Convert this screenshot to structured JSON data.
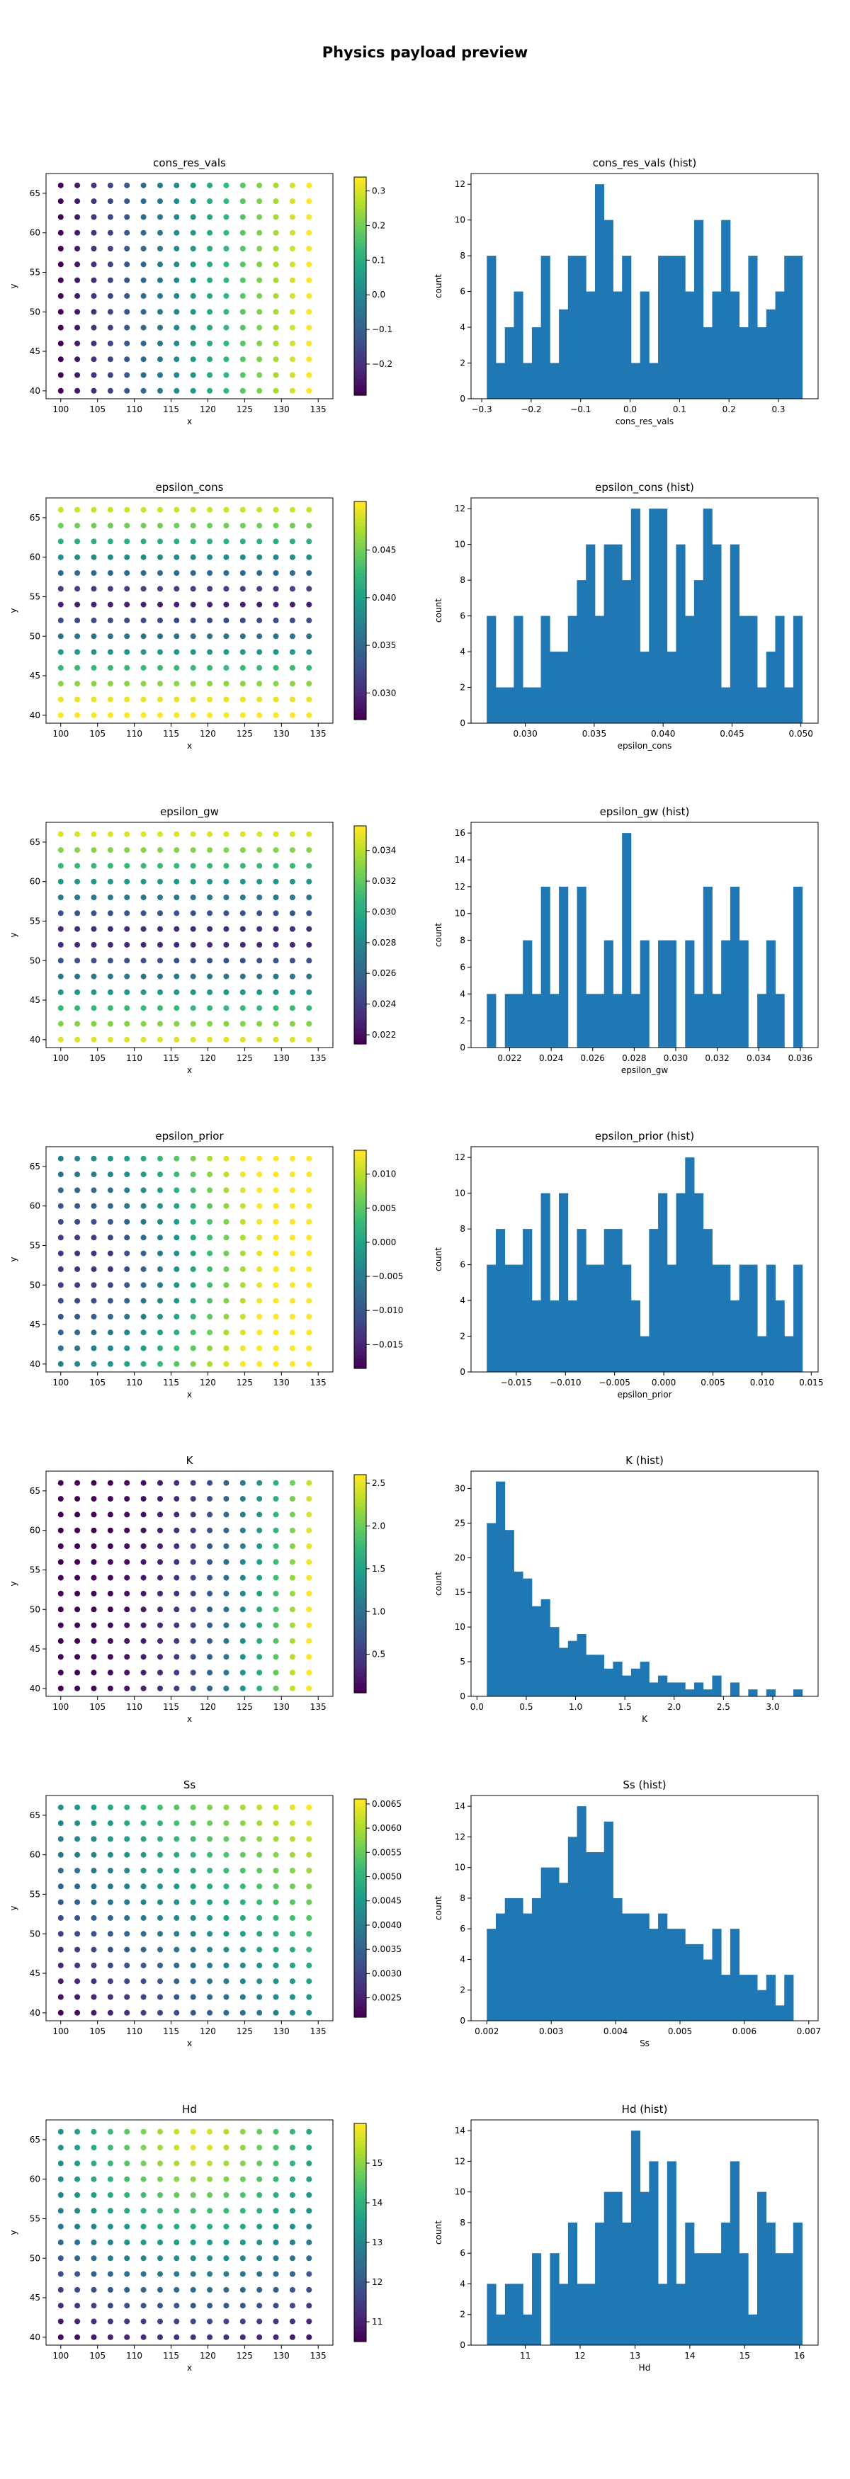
{
  "figure": {
    "title": "Physics payload preview"
  },
  "colormap": [
    "#440154",
    "#482878",
    "#3e4a89",
    "#31688e",
    "#26828e",
    "#1f9e89",
    "#35b779",
    "#6ece58",
    "#b5de2b",
    "#fde725"
  ],
  "hist_color": "#1f77b4",
  "chart_data": [
    {
      "type": "scatter",
      "title": "cons_res_vals",
      "xlabel": "x",
      "ylabel": "y",
      "xlim": [
        98,
        137
      ],
      "ylim": [
        39,
        67.5
      ],
      "xticks": [
        100,
        105,
        110,
        115,
        120,
        125,
        130,
        135
      ],
      "yticks": [
        40,
        45,
        50,
        55,
        60,
        65
      ],
      "grid": {
        "x_start": 100,
        "x_step": 2.25,
        "nx": 16,
        "y_start": 40,
        "y_step": 2,
        "ny": 14
      },
      "field": {
        "x_coef": 1,
        "y_coef": 0,
        "xy_coef": 0
      },
      "colorbar": {
        "min": -0.29,
        "max": 0.34,
        "ticks": [
          -0.2,
          -0.1,
          0.0,
          0.1,
          0.2,
          0.3
        ],
        "tick_labels": [
          "−0.2",
          "−0.1",
          "0.0",
          "0.1",
          "0.2",
          "0.3"
        ]
      }
    },
    {
      "type": "bar",
      "title": "cons_res_vals (hist)",
      "xlabel": "cons_res_vals",
      "ylabel": "count",
      "bin_start": -0.2897,
      "bin_end": 0.3483,
      "values": [
        8,
        2,
        4,
        6,
        2,
        4,
        8,
        2,
        5,
        8,
        8,
        6,
        12,
        10,
        6,
        8,
        2,
        6,
        2,
        8,
        8,
        8,
        6,
        10,
        4,
        6,
        10,
        6,
        4,
        8,
        4,
        5,
        6,
        8,
        8
      ],
      "xlim": [
        -0.3216,
        0.3802
      ],
      "ylim": [
        0,
        12.6
      ],
      "xticks": [
        -0.3,
        -0.2,
        -0.1,
        0.0,
        0.1,
        0.2,
        0.3
      ],
      "xtick_labels": [
        "−0.3",
        "−0.2",
        "−0.1",
        "0.0",
        "0.1",
        "0.2",
        "0.3"
      ],
      "yticks": [
        0,
        2,
        4,
        6,
        8,
        10,
        12
      ]
    },
    {
      "type": "scatter",
      "title": "epsilon_cons",
      "xlabel": "x",
      "ylabel": "y",
      "xlim": [
        98,
        137
      ],
      "ylim": [
        39,
        67.5
      ],
      "xticks": [
        100,
        105,
        110,
        115,
        120,
        125,
        130,
        135
      ],
      "yticks": [
        40,
        45,
        50,
        55,
        60,
        65
      ],
      "grid": {
        "x_start": 100,
        "x_step": 2.25,
        "nx": 16,
        "y_start": 40,
        "y_step": 2,
        "ny": 14
      },
      "field": {
        "x_coef": 0,
        "y_coef": 0.5,
        "xy_coef": -1.5
      },
      "colorbar": {
        "min": 0.0272,
        "max": 0.0501,
        "ticks": [
          0.03,
          0.035,
          0.04,
          0.045
        ],
        "tick_labels": [
          "0.030",
          "0.035",
          "0.040",
          "0.045"
        ]
      }
    },
    {
      "type": "bar",
      "title": "epsilon_cons (hist)",
      "xlabel": "epsilon_cons",
      "ylabel": "count",
      "bin_start": 0.0272,
      "bin_end": 0.0501,
      "values": [
        6,
        2,
        2,
        6,
        2,
        2,
        6,
        4,
        4,
        6,
        8,
        10,
        6,
        10,
        10,
        8,
        12,
        4,
        12,
        12,
        4,
        10,
        6,
        8,
        12,
        10,
        2,
        10,
        6,
        6,
        2,
        4,
        6,
        2,
        6
      ],
      "xlim": [
        0.02606,
        0.05125
      ],
      "ylim": [
        0,
        12.6
      ],
      "xticks": [
        0.03,
        0.035,
        0.04,
        0.045,
        0.05
      ],
      "xtick_labels": [
        "0.030",
        "0.035",
        "0.040",
        "0.045",
        "0.050"
      ],
      "yticks": [
        0,
        2,
        4,
        6,
        8,
        10,
        12
      ]
    },
    {
      "type": "scatter",
      "title": "epsilon_gw",
      "xlabel": "x",
      "ylabel": "y",
      "xlim": [
        98,
        137
      ],
      "ylim": [
        39,
        67.5
      ],
      "xticks": [
        100,
        105,
        110,
        115,
        120,
        125,
        130,
        135
      ],
      "yticks": [
        40,
        45,
        50,
        55,
        60,
        65
      ],
      "grid": {
        "x_start": 100,
        "x_step": 2.25,
        "nx": 16,
        "y_start": 40,
        "y_step": 2,
        "ny": 14
      },
      "field": {
        "x_coef": 0,
        "y_coef": 0,
        "xy_coef": 0,
        "y_center": 0.5,
        "y_abs": 1.1
      },
      "colorbar": {
        "min": 0.0214,
        "max": 0.0356,
        "ticks": [
          0.022,
          0.024,
          0.026,
          0.028,
          0.03,
          0.032,
          0.034
        ],
        "tick_labels": [
          "0.022",
          "0.024",
          "0.026",
          "0.028",
          "0.030",
          "0.032",
          "0.034"
        ]
      }
    },
    {
      "type": "bar",
      "title": "epsilon_gw (hist)",
      "xlabel": "epsilon_gw",
      "ylabel": "count",
      "bin_start": 0.0209,
      "bin_end": 0.0361,
      "values": [
        4,
        0,
        4,
        4,
        8,
        4,
        12,
        4,
        12,
        0,
        12,
        4,
        4,
        8,
        4,
        16,
        4,
        8,
        0,
        8,
        8,
        0,
        8,
        4,
        12,
        4,
        8,
        12,
        8,
        0,
        4,
        8,
        4,
        0,
        12
      ],
      "xlim": [
        0.02014,
        0.03686
      ],
      "ylim": [
        0,
        16.8
      ],
      "xticks": [
        0.022,
        0.024,
        0.026,
        0.028,
        0.03,
        0.032,
        0.034,
        0.036
      ],
      "xtick_labels": [
        "0.022",
        "0.024",
        "0.026",
        "0.028",
        "0.030",
        "0.032",
        "0.034",
        "0.036"
      ],
      "yticks": [
        0,
        2,
        4,
        6,
        8,
        10,
        12,
        14,
        16
      ]
    },
    {
      "type": "scatter",
      "title": "epsilon_prior",
      "xlabel": "x",
      "ylabel": "y",
      "xlim": [
        98,
        137
      ],
      "ylim": [
        39,
        67.5
      ],
      "xticks": [
        100,
        105,
        110,
        115,
        120,
        125,
        130,
        135
      ],
      "yticks": [
        40,
        45,
        50,
        55,
        60,
        65
      ],
      "grid": {
        "x_start": 100,
        "x_step": 2.25,
        "nx": 16,
        "y_start": 40,
        "y_step": 2,
        "ny": 14
      },
      "field": {
        "x_coef": 0.6,
        "y_coef": 0,
        "xy_coef": 0,
        "x_center": 0.2,
        "y_center": 0.5,
        "radial": 0.8
      },
      "colorbar": {
        "min": -0.0185,
        "max": 0.0135,
        "ticks": [
          -0.015,
          -0.01,
          -0.005,
          0.0,
          0.005,
          0.01
        ],
        "tick_labels": [
          "−0.015",
          "−0.010",
          "−0.005",
          "0.000",
          "0.005",
          "0.010"
        ]
      }
    },
    {
      "type": "bar",
      "title": "epsilon_prior (hist)",
      "xlabel": "epsilon_prior",
      "ylabel": "count",
      "bin_start": -0.018,
      "bin_end": 0.0141,
      "values": [
        6,
        8,
        6,
        6,
        8,
        4,
        10,
        4,
        10,
        4,
        8,
        6,
        6,
        8,
        8,
        6,
        4,
        2,
        8,
        10,
        6,
        10,
        12,
        10,
        8,
        6,
        6,
        4,
        6,
        6,
        2,
        6,
        4,
        2,
        6
      ],
      "xlim": [
        -0.0196,
        0.0157
      ],
      "ylim": [
        0,
        12.6
      ],
      "xticks": [
        -0.015,
        -0.01,
        -0.005,
        0.0,
        0.005,
        0.01,
        0.015
      ],
      "xtick_labels": [
        "−0.015",
        "−0.010",
        "−0.005",
        "0.000",
        "0.005",
        "0.010",
        "0.015"
      ],
      "yticks": [
        0,
        2,
        4,
        6,
        8,
        10,
        12
      ]
    },
    {
      "type": "scatter",
      "title": "K",
      "xlabel": "x",
      "ylabel": "y",
      "xlim": [
        98,
        137
      ],
      "ylim": [
        39,
        67.5
      ],
      "xticks": [
        100,
        105,
        110,
        115,
        120,
        125,
        130,
        135
      ],
      "yticks": [
        40,
        45,
        50,
        55,
        60,
        65
      ],
      "grid": {
        "x_start": 100,
        "x_step": 2.25,
        "nx": 16,
        "y_start": 40,
        "y_step": 2,
        "ny": 14
      },
      "field": {
        "x_coef": 0,
        "y_coef": 0,
        "xy_coef": 0,
        "power": 2.5,
        "power_y": -0.3
      },
      "colorbar": {
        "min": 0.05,
        "max": 2.6,
        "ticks": [
          0.5,
          1.0,
          1.5,
          2.0,
          2.5
        ],
        "tick_labels": [
          "0.5",
          "1.0",
          "1.5",
          "2.0",
          "2.5"
        ]
      }
    },
    {
      "type": "bar",
      "title": "K (hist)",
      "xlabel": "K",
      "ylabel": "count",
      "bin_start": 0.1,
      "bin_end": 3.3,
      "values": [
        25,
        31,
        24,
        18,
        17,
        13,
        14,
        10,
        7,
        8,
        9,
        6,
        6,
        4,
        5,
        3,
        4,
        5,
        2,
        3,
        2,
        2,
        1,
        2,
        1,
        3,
        0,
        2,
        0,
        1,
        0,
        1,
        0,
        0,
        1
      ],
      "xlim": [
        -0.06,
        3.46
      ],
      "ylim": [
        0,
        32.5
      ],
      "xticks": [
        0.0,
        0.5,
        1.0,
        1.5,
        2.0,
        2.5,
        3.0
      ],
      "xtick_labels": [
        "0.0",
        "0.5",
        "1.0",
        "1.5",
        "2.0",
        "2.5",
        "3.0"
      ],
      "yticks": [
        0,
        5,
        10,
        15,
        20,
        25,
        30
      ]
    },
    {
      "type": "scatter",
      "title": "Ss",
      "xlabel": "x",
      "ylabel": "y",
      "xlim": [
        98,
        137
      ],
      "ylim": [
        39,
        67.5
      ],
      "xticks": [
        100,
        105,
        110,
        115,
        120,
        125,
        130,
        135
      ],
      "yticks": [
        40,
        45,
        50,
        55,
        60,
        65
      ],
      "grid": {
        "x_start": 100,
        "x_step": 2.25,
        "nx": 16,
        "y_start": 40,
        "y_step": 2,
        "ny": 14
      },
      "field": {
        "x_coef": 0.5,
        "y_coef": 0.5,
        "xy_coef": 0
      },
      "colorbar": {
        "min": 0.0021,
        "max": 0.0066,
        "ticks": [
          0.0025,
          0.003,
          0.0035,
          0.004,
          0.0045,
          0.005,
          0.0055,
          0.006,
          0.0065
        ],
        "tick_labels": [
          "0.0025",
          "0.0030",
          "0.0035",
          "0.0040",
          "0.0045",
          "0.0050",
          "0.0055",
          "0.0060",
          "0.0065"
        ]
      }
    },
    {
      "type": "bar",
      "title": "Ss (hist)",
      "xlabel": "Ss",
      "ylabel": "count",
      "bin_start": 0.002,
      "bin_end": 0.0069,
      "values": [
        6,
        7,
        8,
        8,
        7,
        8,
        10,
        10,
        9,
        12,
        14,
        11,
        11,
        13,
        8,
        7,
        7,
        7,
        6,
        7,
        6,
        6,
        5,
        5,
        4,
        6,
        3,
        6,
        3,
        3,
        2,
        3,
        1,
        3,
        0
      ],
      "xlim": [
        0.001755,
        0.007145
      ],
      "ylim": [
        0,
        14.7
      ],
      "xticks": [
        0.002,
        0.003,
        0.004,
        0.005,
        0.006,
        0.007
      ],
      "xtick_labels": [
        "0.002",
        "0.003",
        "0.004",
        "0.005",
        "0.006",
        "0.007"
      ],
      "yticks": [
        0,
        2,
        4,
        6,
        8,
        10,
        12,
        14
      ]
    },
    {
      "type": "scatter",
      "title": "Hd",
      "xlabel": "x",
      "ylabel": "y",
      "xlim": [
        98,
        137
      ],
      "ylim": [
        39,
        67.5
      ],
      "xticks": [
        100,
        105,
        110,
        115,
        120,
        125,
        130,
        135
      ],
      "yticks": [
        40,
        45,
        50,
        55,
        60,
        65
      ],
      "grid": {
        "x_start": 100,
        "x_step": 2.25,
        "nx": 16,
        "y_start": 40,
        "y_step": 2,
        "ny": 14
      },
      "field": {
        "x_coef": 0,
        "y_coef": 0,
        "xy_coef": 0,
        "x_center": 0.55,
        "y_center": 0.95,
        "radial": -1.0
      },
      "colorbar": {
        "min": 10.5,
        "max": 16.0,
        "ticks": [
          11,
          12,
          13,
          14,
          15
        ],
        "tick_labels": [
          "11",
          "12",
          "13",
          "14",
          "15"
        ]
      }
    },
    {
      "type": "bar",
      "title": "Hd (hist)",
      "xlabel": "Hd",
      "ylabel": "count",
      "bin_start": 10.3,
      "bin_end": 16.05,
      "values": [
        4,
        2,
        4,
        4,
        2,
        6,
        0,
        6,
        4,
        8,
        4,
        4,
        8,
        10,
        10,
        8,
        14,
        10,
        12,
        4,
        12,
        4,
        8,
        6,
        6,
        6,
        8,
        12,
        6,
        2,
        10,
        8,
        6,
        6,
        8
      ],
      "xlim": [
        10.01,
        16.34
      ],
      "ylim": [
        0,
        14.7
      ],
      "xticks": [
        11,
        12,
        13,
        14,
        15,
        16
      ],
      "xtick_labels": [
        "11",
        "12",
        "13",
        "14",
        "15",
        "16"
      ],
      "yticks": [
        0,
        2,
        4,
        6,
        8,
        10,
        12,
        14
      ]
    }
  ]
}
